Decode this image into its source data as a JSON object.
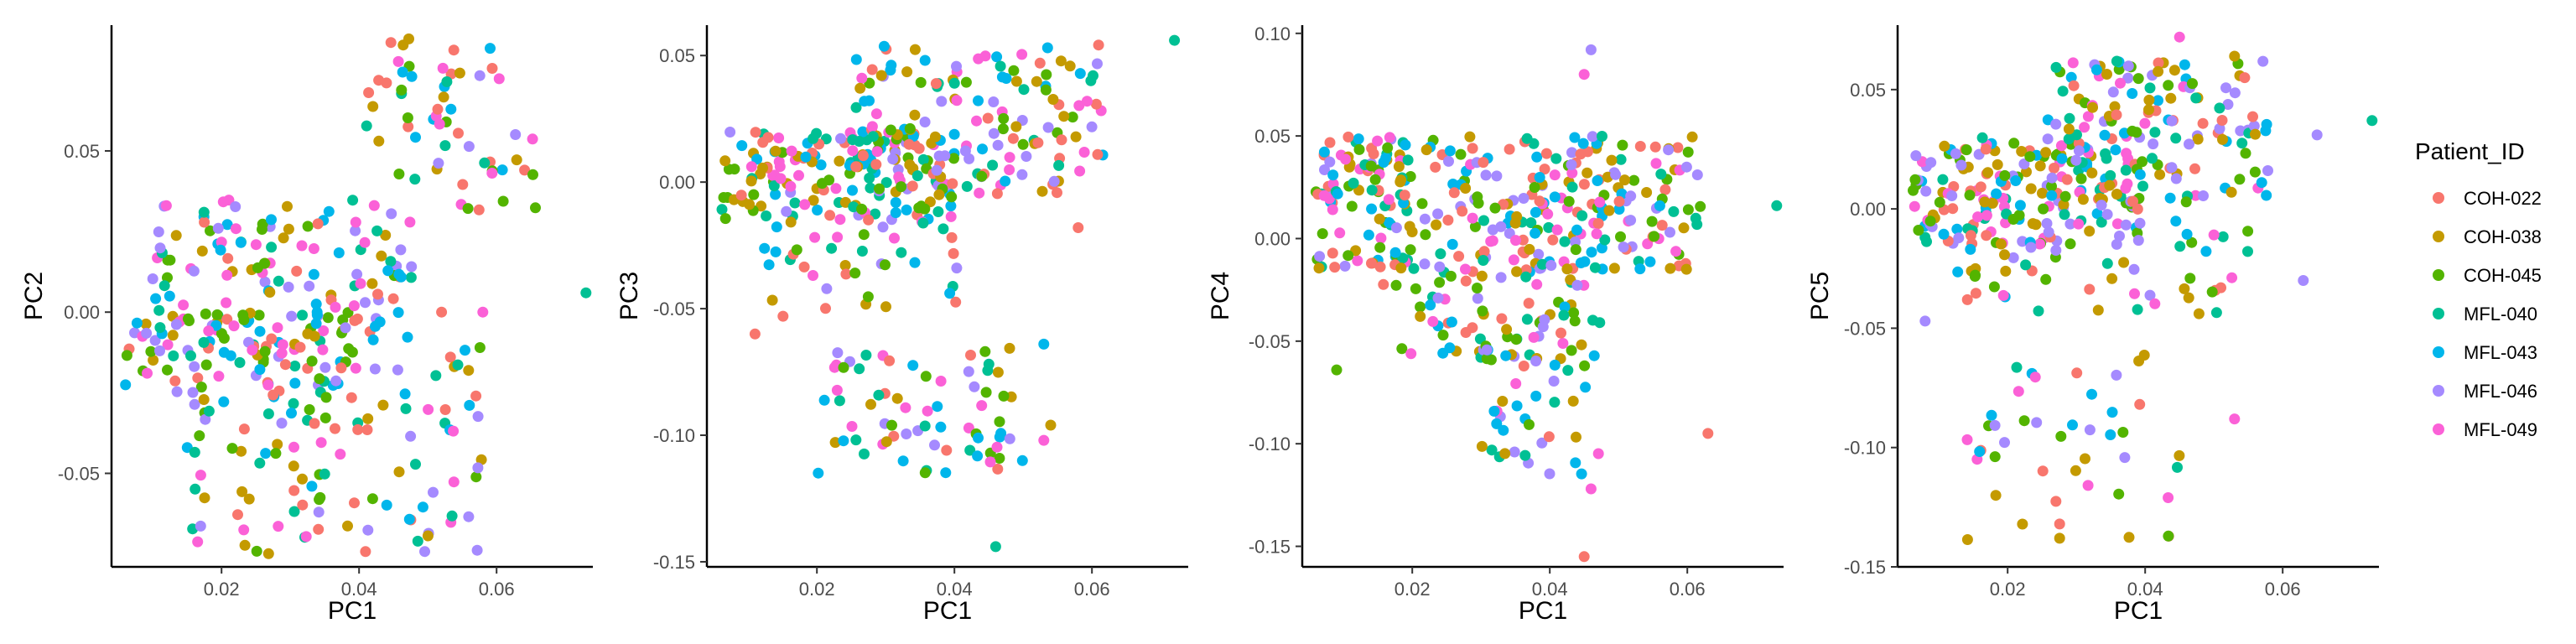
{
  "chart_data": [
    {
      "type": "scatter",
      "xlabel": "PC1",
      "ylabel": "PC2",
      "xlim": [
        0.004,
        0.074
      ],
      "ylim": [
        -0.079,
        0.089
      ],
      "x_ticks": [
        0.02,
        0.04,
        0.06
      ],
      "x_tick_labels": [
        "0.02",
        "0.04",
        "0.06"
      ],
      "y_ticks": [
        -0.05,
        0.0,
        0.05
      ],
      "y_tick_labels": [
        "-0.05",
        "0.00",
        "0.05"
      ],
      "clusters": [
        {
          "x": [
            0.006,
            0.04
          ],
          "y": [
            -0.025,
            0.0
          ],
          "n": 90,
          "desc": "lower-left band"
        },
        {
          "x": [
            0.01,
            0.048
          ],
          "y": [
            -0.01,
            0.035
          ],
          "n": 130,
          "desc": "upper diagonal band"
        },
        {
          "x": [
            0.015,
            0.058
          ],
          "y": [
            -0.075,
            -0.01
          ],
          "n": 120,
          "desc": "lower diagonal band"
        },
        {
          "x": [
            0.04,
            0.066
          ],
          "y": [
            0.03,
            0.086
          ],
          "n": 60,
          "desc": "top-right group"
        }
      ],
      "extra_points": [
        {
          "x": 0.073,
          "y": 0.006,
          "group": "MFL-040"
        },
        {
          "x": 0.058,
          "y": 0.0,
          "group": "MFL-049"
        },
        {
          "x": 0.057,
          "y": -0.026,
          "group": "COH-022"
        },
        {
          "x": 0.052,
          "y": 0.0,
          "group": "COH-022"
        }
      ]
    },
    {
      "type": "scatter",
      "xlabel": "PC1",
      "ylabel": "PC3",
      "xlim": [
        0.004,
        0.074
      ],
      "ylim": [
        -0.152,
        0.062
      ],
      "x_ticks": [
        0.02,
        0.04,
        0.06
      ],
      "x_tick_labels": [
        "0.02",
        "0.04",
        "0.06"
      ],
      "y_ticks": [
        -0.15,
        -0.1,
        -0.05,
        0.0,
        0.05
      ],
      "y_tick_labels": [
        "-0.15",
        "-0.10",
        "-0.05",
        "0.00",
        "0.05"
      ],
      "clusters": [
        {
          "x": [
            0.006,
            0.04
          ],
          "y": [
            -0.015,
            0.02
          ],
          "n": 160,
          "desc": "left dense band"
        },
        {
          "x": [
            0.025,
            0.062
          ],
          "y": [
            -0.005,
            0.055
          ],
          "n": 150,
          "desc": "rising band"
        },
        {
          "x": [
            0.012,
            0.042
          ],
          "y": [
            -0.055,
            -0.015
          ],
          "n": 40,
          "desc": "mid scatter"
        },
        {
          "x": [
            0.02,
            0.05
          ],
          "y": [
            -0.115,
            -0.065
          ],
          "n": 70,
          "desc": "bottom group"
        }
      ],
      "extra_points": [
        {
          "x": 0.072,
          "y": 0.056,
          "group": "MFL-040"
        },
        {
          "x": 0.046,
          "y": -0.144,
          "group": "MFL-040"
        },
        {
          "x": 0.054,
          "y": -0.096,
          "group": "COH-038"
        },
        {
          "x": 0.053,
          "y": -0.102,
          "group": "MFL-049"
        },
        {
          "x": 0.053,
          "y": -0.064,
          "group": "MFL-043"
        },
        {
          "x": 0.011,
          "y": -0.06,
          "group": "COH-022"
        },
        {
          "x": 0.058,
          "y": -0.018,
          "group": "COH-022"
        }
      ]
    },
    {
      "type": "scatter",
      "xlabel": "PC1",
      "ylabel": "PC4",
      "xlim": [
        0.004,
        0.074
      ],
      "ylim": [
        -0.16,
        0.104
      ],
      "x_ticks": [
        0.02,
        0.04,
        0.06
      ],
      "x_tick_labels": [
        "0.02",
        "0.04",
        "0.06"
      ],
      "y_ticks": [
        -0.15,
        -0.1,
        -0.05,
        0.0,
        0.05,
        0.1
      ],
      "y_tick_labels": [
        "-0.15",
        "-0.10",
        "-0.05",
        "0.00",
        "0.05",
        "0.10"
      ],
      "clusters": [
        {
          "x": [
            0.006,
            0.062
          ],
          "y": [
            -0.015,
            0.05
          ],
          "n": 320,
          "desc": "main horizontal band"
        },
        {
          "x": [
            0.014,
            0.045
          ],
          "y": [
            -0.06,
            -0.01
          ],
          "n": 70,
          "desc": "lower-left group"
        },
        {
          "x": [
            0.03,
            0.048
          ],
          "y": [
            -0.115,
            -0.035
          ],
          "n": 55,
          "desc": "lower tail"
        }
      ],
      "extra_points": [
        {
          "x": 0.073,
          "y": 0.016,
          "group": "MFL-040"
        },
        {
          "x": 0.046,
          "y": 0.092,
          "group": "MFL-046"
        },
        {
          "x": 0.045,
          "y": 0.08,
          "group": "MFL-049"
        },
        {
          "x": 0.045,
          "y": -0.155,
          "group": "COH-022"
        },
        {
          "x": 0.046,
          "y": -0.122,
          "group": "MFL-049"
        },
        {
          "x": 0.063,
          "y": -0.095,
          "group": "COH-022"
        },
        {
          "x": 0.009,
          "y": -0.064,
          "group": "COH-045"
        }
      ]
    },
    {
      "type": "scatter",
      "xlabel": "PC1",
      "ylabel": "PC5",
      "xlim": [
        0.004,
        0.074
      ],
      "ylim": [
        -0.15,
        0.077
      ],
      "x_ticks": [
        0.02,
        0.04,
        0.06
      ],
      "x_tick_labels": [
        "0.02",
        "0.04",
        "0.06"
      ],
      "y_ticks": [
        -0.15,
        -0.1,
        -0.05,
        0.0,
        0.05
      ],
      "y_tick_labels": [
        "-0.15",
        "-0.10",
        "-0.05",
        "0.00",
        "0.05"
      ],
      "clusters": [
        {
          "x": [
            0.006,
            0.04
          ],
          "y": [
            -0.015,
            0.03
          ],
          "n": 180,
          "desc": "left dense band"
        },
        {
          "x": [
            0.025,
            0.058
          ],
          "y": [
            0.0,
            0.062
          ],
          "n": 140,
          "desc": "upper-right band"
        },
        {
          "x": [
            0.012,
            0.055
          ],
          "y": [
            -0.045,
            -0.005
          ],
          "n": 60,
          "desc": "mid scatter"
        },
        {
          "x": [
            0.014,
            0.045
          ],
          "y": [
            -0.14,
            -0.06
          ],
          "n": 45,
          "desc": "bottom group"
        }
      ],
      "extra_points": [
        {
          "x": 0.073,
          "y": 0.037,
          "group": "MFL-040"
        },
        {
          "x": 0.065,
          "y": 0.031,
          "group": "MFL-046"
        },
        {
          "x": 0.045,
          "y": 0.072,
          "group": "MFL-049"
        },
        {
          "x": 0.053,
          "y": 0.064,
          "group": "COH-038"
        },
        {
          "x": 0.063,
          "y": -0.03,
          "group": "MFL-046"
        },
        {
          "x": 0.053,
          "y": -0.088,
          "group": "MFL-049"
        },
        {
          "x": 0.008,
          "y": -0.047,
          "group": "MFL-046"
        }
      ]
    }
  ],
  "legend": {
    "title": "Patient_ID",
    "items": [
      {
        "label": "COH-022",
        "color": "#F8766D"
      },
      {
        "label": "COH-038",
        "color": "#C49A00"
      },
      {
        "label": "COH-045",
        "color": "#53B400"
      },
      {
        "label": "MFL-040",
        "color": "#00C094"
      },
      {
        "label": "MFL-043",
        "color": "#00B6EB"
      },
      {
        "label": "MFL-046",
        "color": "#A58AFF"
      },
      {
        "label": "MFL-049",
        "color": "#FB61D7"
      }
    ]
  }
}
